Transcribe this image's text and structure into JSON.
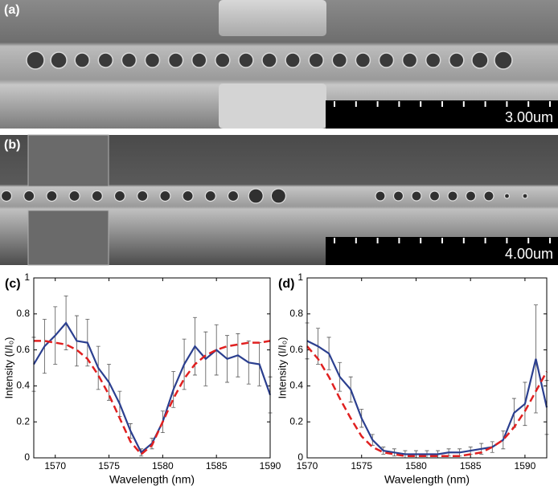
{
  "images": [
    {
      "label": "(a)",
      "scale": "3.00um"
    },
    {
      "label": "(b)",
      "scale": "4.00um"
    }
  ],
  "chart_data": [
    {
      "type": "line",
      "label": "(c)",
      "xlabel": "Wavelength (nm)",
      "ylabel": "Intensity (I/I₀)",
      "x": [
        1568,
        1569,
        1570,
        1571,
        1572,
        1573,
        1574,
        1575,
        1576,
        1577,
        1578,
        1579,
        1580,
        1581,
        1582,
        1583,
        1584,
        1585,
        1586,
        1587,
        1588,
        1589,
        1590
      ],
      "series": [
        {
          "color": "#2b3f8f",
          "values": [
            0.52,
            0.62,
            0.68,
            0.75,
            0.65,
            0.64,
            0.5,
            0.42,
            0.3,
            0.15,
            0.03,
            0.08,
            0.2,
            0.38,
            0.52,
            0.62,
            0.55,
            0.6,
            0.55,
            0.57,
            0.53,
            0.52,
            0.35
          ],
          "errors": [
            0.15,
            0.15,
            0.16,
            0.15,
            0.14,
            0.13,
            0.12,
            0.1,
            0.07,
            0.04,
            0.02,
            0.03,
            0.06,
            0.1,
            0.14,
            0.16,
            0.15,
            0.14,
            0.13,
            0.12,
            0.12,
            0.12,
            0.1
          ]
        },
        {
          "color": "#e02020",
          "dashed": true,
          "values": [
            0.65,
            0.65,
            0.64,
            0.63,
            0.6,
            0.55,
            0.46,
            0.35,
            0.22,
            0.09,
            0.02,
            0.07,
            0.2,
            0.33,
            0.44,
            0.52,
            0.57,
            0.6,
            0.62,
            0.63,
            0.64,
            0.64,
            0.65
          ]
        }
      ],
      "xlim": [
        1568,
        1590
      ],
      "xticks": [
        1570,
        1575,
        1580,
        1585,
        1590
      ],
      "ylim": [
        0,
        1
      ],
      "yticks": [
        0,
        0.2,
        0.4,
        0.6,
        0.8,
        1
      ]
    },
    {
      "type": "line",
      "label": "(d)",
      "xlabel": "Wavelength (nm)",
      "ylabel": "Intensity (I/I₀)",
      "x": [
        1570,
        1571,
        1572,
        1573,
        1574,
        1575,
        1576,
        1577,
        1578,
        1579,
        1580,
        1581,
        1582,
        1583,
        1584,
        1585,
        1586,
        1587,
        1588,
        1589,
        1590,
        1591,
        1592
      ],
      "series": [
        {
          "color": "#2b3f8f",
          "values": [
            0.65,
            0.62,
            0.58,
            0.45,
            0.38,
            0.22,
            0.1,
            0.04,
            0.03,
            0.02,
            0.02,
            0.02,
            0.02,
            0.03,
            0.03,
            0.04,
            0.05,
            0.06,
            0.1,
            0.25,
            0.3,
            0.55,
            0.28
          ],
          "errors": [
            0.1,
            0.1,
            0.09,
            0.08,
            0.07,
            0.05,
            0.03,
            0.02,
            0.02,
            0.02,
            0.02,
            0.02,
            0.02,
            0.02,
            0.02,
            0.02,
            0.03,
            0.03,
            0.05,
            0.08,
            0.12,
            0.3,
            0.15
          ]
        },
        {
          "color": "#e02020",
          "dashed": true,
          "values": [
            0.62,
            0.55,
            0.45,
            0.33,
            0.22,
            0.12,
            0.06,
            0.03,
            0.02,
            0.01,
            0.01,
            0.01,
            0.01,
            0.01,
            0.01,
            0.02,
            0.03,
            0.06,
            0.1,
            0.17,
            0.26,
            0.37,
            0.48
          ]
        }
      ],
      "xlim": [
        1570,
        1592
      ],
      "xticks": [
        1570,
        1575,
        1580,
        1585,
        1590
      ],
      "ylim": [
        0,
        1
      ],
      "yticks": [
        0,
        0.2,
        0.4,
        0.6,
        0.8,
        1
      ]
    }
  ]
}
